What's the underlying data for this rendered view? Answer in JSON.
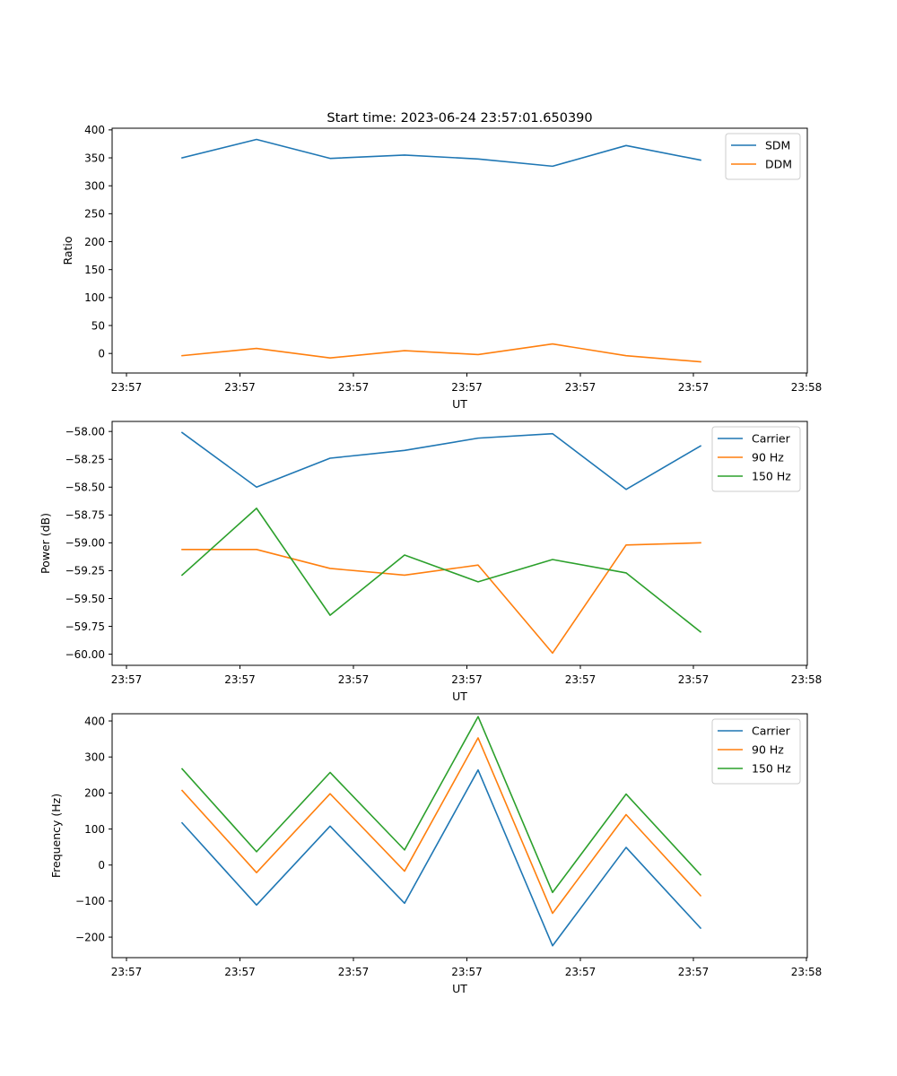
{
  "chart_data": [
    {
      "type": "line",
      "title": "Start time: 2023-06-24 23:57:01.650390",
      "xlabel": "UT",
      "ylabel": "Ratio",
      "x_tick_labels": [
        "23:57",
        "23:57",
        "23:57",
        "23:57",
        "23:57",
        "23:57",
        "23:58"
      ],
      "yticks": [
        0,
        50,
        100,
        150,
        200,
        250,
        300,
        350,
        400
      ],
      "ytick_labels": [
        "0",
        "50",
        "100",
        "150",
        "200",
        "250",
        "300",
        "350",
        "400"
      ],
      "ylim": [
        -35,
        403
      ],
      "legend_position": "top-right",
      "series": [
        {
          "name": "SDM",
          "color": "#1f77b4",
          "values": [
            350,
            383,
            349,
            355,
            348,
            335,
            372,
            346
          ]
        },
        {
          "name": "DDM",
          "color": "#ff7f0e",
          "values": [
            -4,
            9,
            -8,
            5,
            -2,
            17,
            -4,
            -15
          ]
        }
      ]
    },
    {
      "type": "line",
      "title": "",
      "xlabel": "UT",
      "ylabel": "Power (dB)",
      "x_tick_labels": [
        "23:57",
        "23:57",
        "23:57",
        "23:57",
        "23:57",
        "23:57",
        "23:58"
      ],
      "yticks": [
        -60.0,
        -59.75,
        -59.5,
        -59.25,
        -59.0,
        -58.75,
        -58.5,
        -58.25,
        -58.0
      ],
      "ytick_labels": [
        "−60.00",
        "−59.75",
        "−59.50",
        "−59.25",
        "−59.00",
        "−58.75",
        "−58.50",
        "−58.25",
        "−58.00"
      ],
      "ylim": [
        -60.1,
        -57.91
      ],
      "legend_position": "top-right",
      "series": [
        {
          "name": "Carrier",
          "color": "#1f77b4",
          "values": [
            -58.01,
            -58.5,
            -58.24,
            -58.17,
            -58.06,
            -58.02,
            -58.52,
            -58.13
          ]
        },
        {
          "name": "90 Hz",
          "color": "#ff7f0e",
          "values": [
            -59.06,
            -59.06,
            -59.23,
            -59.29,
            -59.2,
            -59.99,
            -59.02,
            -59.0
          ]
        },
        {
          "name": "150 Hz",
          "color": "#2ca02c",
          "values": [
            -59.29,
            -58.69,
            -59.65,
            -59.11,
            -59.35,
            -59.15,
            -59.27,
            -59.8
          ]
        }
      ]
    },
    {
      "type": "line",
      "title": "",
      "xlabel": "UT",
      "ylabel": "Frequency (Hz)",
      "x_tick_labels": [
        "23:57",
        "23:57",
        "23:57",
        "23:57",
        "23:57",
        "23:57",
        "23:58"
      ],
      "yticks": [
        -200,
        -100,
        0,
        100,
        200,
        300,
        400
      ],
      "ytick_labels": [
        "−200",
        "−100",
        "0",
        "100",
        "200",
        "300",
        "400"
      ],
      "ylim": [
        -257,
        420
      ],
      "legend_position": "top-right",
      "series": [
        {
          "name": "Carrier",
          "color": "#1f77b4",
          "values": [
            117,
            -111,
            108,
            -106,
            264,
            -224,
            49,
            -175
          ]
        },
        {
          "name": "90 Hz",
          "color": "#ff7f0e",
          "values": [
            207,
            -21,
            198,
            -17,
            353,
            -134,
            140,
            -85
          ]
        },
        {
          "name": "150 Hz",
          "color": "#2ca02c",
          "values": [
            267,
            37,
            257,
            42,
            412,
            -76,
            197,
            -27
          ]
        }
      ]
    }
  ]
}
